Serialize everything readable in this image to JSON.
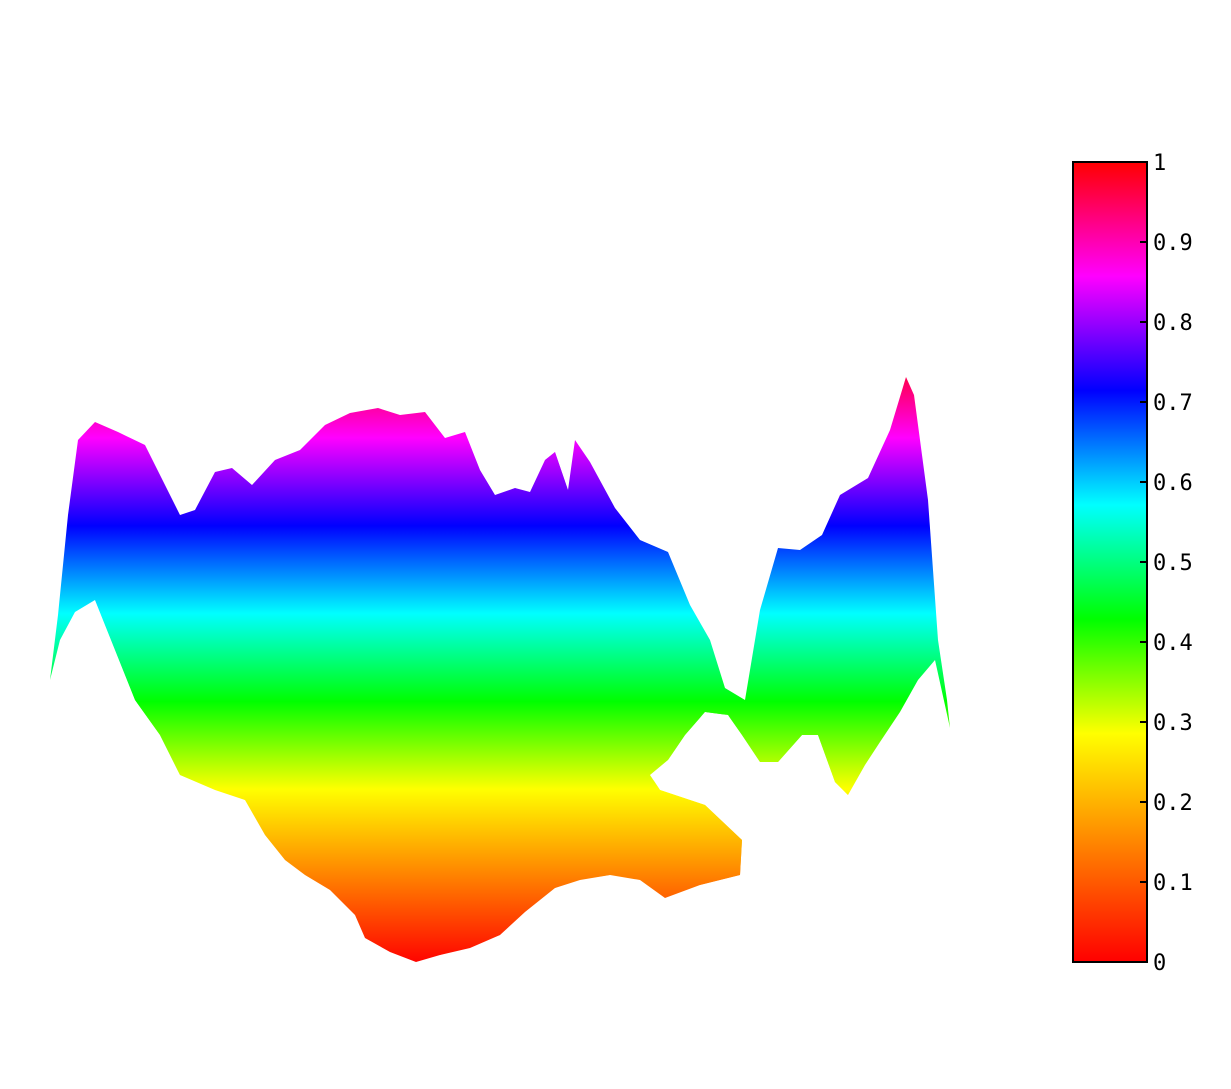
{
  "chart_data": {
    "type": "heatmap",
    "title": "",
    "xlabel": "",
    "ylabel": "",
    "colormap": [
      "#ff0000",
      "#ff8000",
      "#ffff00",
      "#00ff00",
      "#00ffff",
      "#0000ff",
      "#ff00ff",
      "#ff0000"
    ],
    "colorbar": {
      "range": [
        0,
        1
      ],
      "ticks": [
        0,
        0.1,
        0.2,
        0.3,
        0.4,
        0.5,
        0.6,
        0.7,
        0.8,
        0.9,
        1
      ],
      "tick_labels": [
        "0",
        "0.1",
        "0.2",
        "0.3",
        "0.4",
        "0.5",
        "0.6",
        "0.7",
        "0.8",
        "0.9",
        "1"
      ]
    },
    "surface": {
      "description_peaks": [
        {
          "value": 0.83,
          "location": "left-back corner"
        },
        {
          "value": 0.93,
          "location": "right corner"
        },
        {
          "value": 0.73,
          "location": "back center"
        },
        {
          "value": 0.7,
          "location": "center spike"
        }
      ],
      "min_value": 0.0,
      "max_value": 0.93
    }
  }
}
